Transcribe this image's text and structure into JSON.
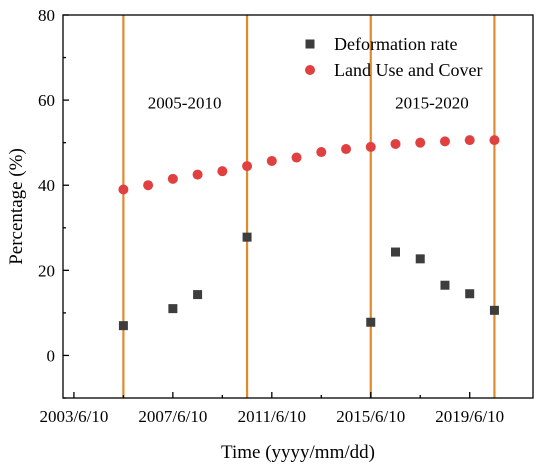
{
  "chart_data": {
    "type": "scatter",
    "xlabel": "Time (yyyy/mm/dd)",
    "ylabel": "Percentage (%)",
    "xlim": [
      "2003-01-01",
      "2022-01-01"
    ],
    "ylim": [
      -10,
      80
    ],
    "x_ticks": [
      {
        "date": "2003-06-10",
        "label": "2003/6/10"
      },
      {
        "date": "2007-06-10",
        "label": "2007/6/10"
      },
      {
        "date": "2011-06-10",
        "label": "2011/6/10"
      },
      {
        "date": "2015-06-10",
        "label": "2015/6/10"
      },
      {
        "date": "2019-06-10",
        "label": "2019/6/10"
      }
    ],
    "y_ticks": [
      0,
      20,
      40,
      60,
      80
    ],
    "grid": false,
    "legend_position": "top-right",
    "vertical_lines": {
      "color": "#e08a2e",
      "dates": [
        "2005-06-10",
        "2010-06-10",
        "2015-06-10",
        "2020-06-10"
      ]
    },
    "annotations": [
      {
        "text": "2005-2010",
        "x": "2007-12-01",
        "y": 58
      },
      {
        "text": "2015-2020",
        "x": "2017-12-01",
        "y": 58
      }
    ],
    "series": [
      {
        "name": "Deformation rate",
        "marker": "square",
        "color": "#3d3d3d",
        "points": [
          {
            "x": "2005-06-10",
            "y": 7.0
          },
          {
            "x": "2007-06-10",
            "y": 11.0
          },
          {
            "x": "2008-06-10",
            "y": 14.3
          },
          {
            "x": "2010-06-10",
            "y": 27.8
          },
          {
            "x": "2015-06-10",
            "y": 7.8
          },
          {
            "x": "2016-06-10",
            "y": 24.3
          },
          {
            "x": "2017-06-10",
            "y": 22.7
          },
          {
            "x": "2018-06-10",
            "y": 16.5
          },
          {
            "x": "2019-06-10",
            "y": 14.5
          },
          {
            "x": "2020-06-10",
            "y": 10.6
          }
        ]
      },
      {
        "name": "Land Use and Cover",
        "marker": "circle",
        "color": "#e04040",
        "points": [
          {
            "x": "2005-06-10",
            "y": 39.0
          },
          {
            "x": "2006-06-10",
            "y": 40.0
          },
          {
            "x": "2007-06-10",
            "y": 41.5
          },
          {
            "x": "2008-06-10",
            "y": 42.5
          },
          {
            "x": "2009-06-10",
            "y": 43.3
          },
          {
            "x": "2010-06-10",
            "y": 44.5
          },
          {
            "x": "2011-06-10",
            "y": 45.7
          },
          {
            "x": "2012-06-10",
            "y": 46.5
          },
          {
            "x": "2013-06-10",
            "y": 47.8
          },
          {
            "x": "2014-06-10",
            "y": 48.5
          },
          {
            "x": "2015-06-10",
            "y": 49.0
          },
          {
            "x": "2016-06-10",
            "y": 49.7
          },
          {
            "x": "2017-06-10",
            "y": 50.0
          },
          {
            "x": "2018-06-10",
            "y": 50.3
          },
          {
            "x": "2019-06-10",
            "y": 50.6
          },
          {
            "x": "2020-06-10",
            "y": 50.6
          }
        ]
      }
    ]
  }
}
